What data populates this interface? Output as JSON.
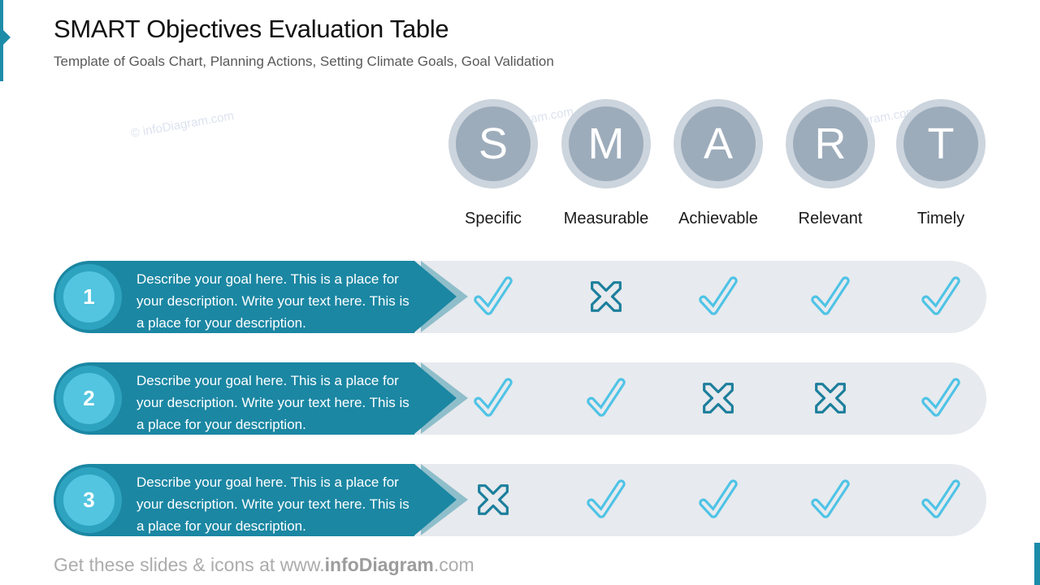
{
  "colors": {
    "teal": "#1B87A3",
    "tealBar": "#1D8CA8",
    "badgeRing": "#2EA3BF",
    "badgeInner": "#53C5E0",
    "arrowLight": "#8FBECB",
    "rowBg": "#E7EAEE",
    "check": "#4EC3E6",
    "cross": "#1C7F9C",
    "circleFill": "#9DACBB",
    "circleRing": "#CCD4DD",
    "watermark": "#DCE2EF"
  },
  "slide": {
    "title": "SMART Objectives Evaluation Table",
    "subtitle": "Template of Goals Chart, Planning Actions, Setting Climate Goals, Goal Validation",
    "watermark": "© infoDiagram.com",
    "footer_prefix": "Get these slides & icons at www.",
    "footer_brand": "infoDiagram",
    "footer_suffix": ".com"
  },
  "columns": [
    {
      "letter": "S",
      "label": "Specific"
    },
    {
      "letter": "M",
      "label": "Measurable"
    },
    {
      "letter": "A",
      "label": "Achievable"
    },
    {
      "letter": "R",
      "label": "Relevant"
    },
    {
      "letter": "T",
      "label": "Timely"
    }
  ],
  "rows": [
    {
      "number": "1",
      "description": "Describe your goal here. This is a place for your description. Write your text here. This is a place for your description.",
      "marks": [
        "check",
        "cross",
        "check",
        "check",
        "check"
      ]
    },
    {
      "number": "2",
      "description": "Describe your goal here. This is a place for your description. Write your text here. This is a place for your description.",
      "marks": [
        "check",
        "check",
        "cross",
        "cross",
        "check"
      ]
    },
    {
      "number": "3",
      "description": "Describe your goal here. This is a place for your description. Write your text here. This is a place for your description.",
      "marks": [
        "cross",
        "check",
        "check",
        "check",
        "check"
      ]
    }
  ]
}
